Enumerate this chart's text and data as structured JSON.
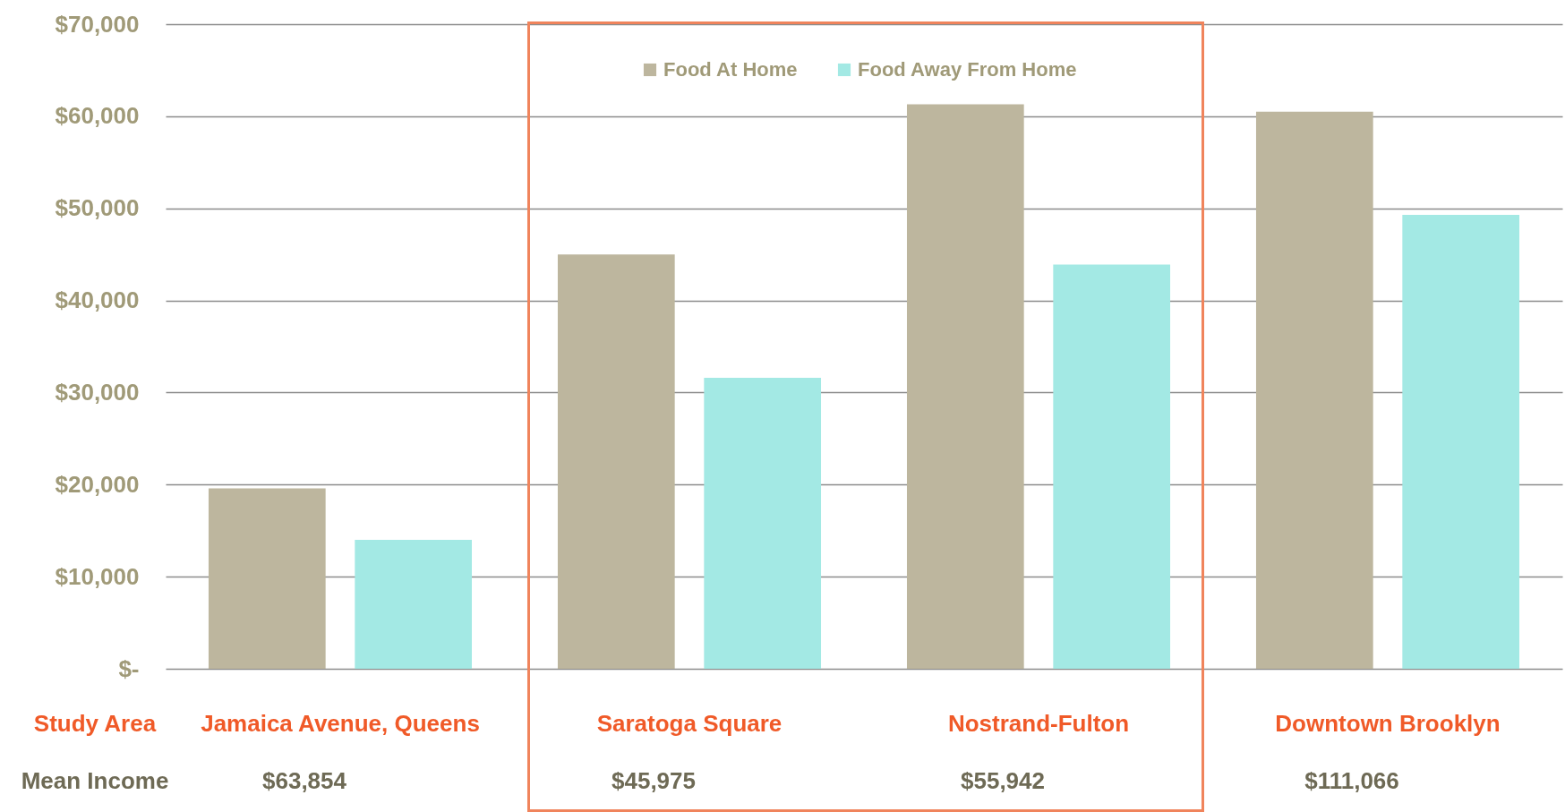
{
  "chart_data": {
    "type": "bar",
    "categories": [
      "Jamaica Avenue, Queens",
      "Saratoga Square",
      "Nostrand-Fulton",
      "Downtown Brooklyn"
    ],
    "series": [
      {
        "name": "Food At Home",
        "color": "#bdb69e",
        "values": [
          19600,
          45000,
          61300,
          60500
        ]
      },
      {
        "name": "Food Away From Home",
        "color": "#a3e9e4",
        "values": [
          14000,
          31600,
          43900,
          49300
        ]
      }
    ],
    "ylim": [
      0,
      70000
    ],
    "yticks": [
      {
        "value": 0,
        "label": "$-"
      },
      {
        "value": 10000,
        "label": "$10,000"
      },
      {
        "value": 20000,
        "label": "$20,000"
      },
      {
        "value": 30000,
        "label": "$30,000"
      },
      {
        "value": 40000,
        "label": "$40,000"
      },
      {
        "value": 50000,
        "label": "$50,000"
      },
      {
        "value": 60000,
        "label": "$60,000"
      },
      {
        "value": 70000,
        "label": "$70,000"
      }
    ],
    "grid": "y",
    "legend": "top",
    "annotations": [
      "Study Area",
      "Mean Income",
      "$63,854",
      "$45,975",
      "$55,942",
      "$111,066"
    ]
  }
}
